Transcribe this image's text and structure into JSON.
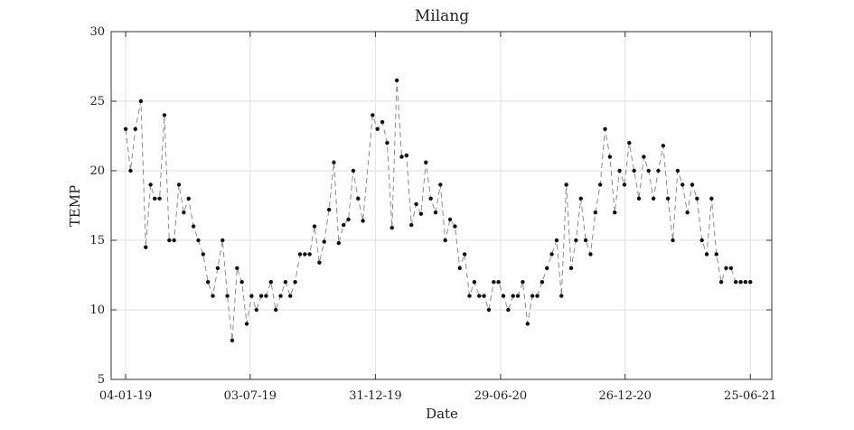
{
  "chart_data": {
    "type": "line",
    "title": "Milang",
    "xlabel": "Date",
    "ylabel": "TEMP",
    "ylim": [
      5,
      30
    ],
    "yticks": [
      5,
      10,
      15,
      20,
      25,
      30
    ],
    "xlim": [
      "2018-12-14",
      "2021-07-26"
    ],
    "xticks": [
      {
        "label": "04-01-19",
        "date": "2019-01-04"
      },
      {
        "label": "03-07-19",
        "date": "2019-07-03"
      },
      {
        "label": "31-12-19",
        "date": "2019-12-31"
      },
      {
        "label": "29-06-20",
        "date": "2020-06-29"
      },
      {
        "label": "26-12-20",
        "date": "2020-12-26"
      },
      {
        "label": "25-06-21",
        "date": "2021-06-25"
      }
    ],
    "grid": true,
    "line_style": "dashed",
    "line_color": "#8c8c8c",
    "marker_color": "#111111",
    "series": [
      {
        "points": [
          [
            "2019-01-04",
            23
          ],
          [
            "2019-01-11",
            20
          ],
          [
            "2019-01-18",
            23
          ],
          [
            "2019-01-26",
            25
          ],
          [
            "2019-02-02",
            14.5
          ],
          [
            "2019-02-09",
            19
          ],
          [
            "2019-02-15",
            18
          ],
          [
            "2019-02-22",
            18
          ],
          [
            "2019-03-01",
            24
          ],
          [
            "2019-03-08",
            15
          ],
          [
            "2019-03-15",
            15
          ],
          [
            "2019-03-22",
            19
          ],
          [
            "2019-03-29",
            17
          ],
          [
            "2019-04-05",
            18
          ],
          [
            "2019-04-12",
            16
          ],
          [
            "2019-04-19",
            15
          ],
          [
            "2019-04-26",
            14
          ],
          [
            "2019-05-03",
            12
          ],
          [
            "2019-05-10",
            11
          ],
          [
            "2019-05-17",
            13
          ],
          [
            "2019-05-24",
            15
          ],
          [
            "2019-05-31",
            11
          ],
          [
            "2019-06-07",
            7.8
          ],
          [
            "2019-06-14",
            13
          ],
          [
            "2019-06-21",
            12
          ],
          [
            "2019-06-28",
            9
          ],
          [
            "2019-07-05",
            11
          ],
          [
            "2019-07-12",
            10
          ],
          [
            "2019-07-19",
            11
          ],
          [
            "2019-07-26",
            11
          ],
          [
            "2019-08-02",
            12
          ],
          [
            "2019-08-09",
            10
          ],
          [
            "2019-08-16",
            11
          ],
          [
            "2019-08-23",
            12
          ],
          [
            "2019-08-30",
            11
          ],
          [
            "2019-09-06",
            12
          ],
          [
            "2019-09-13",
            14
          ],
          [
            "2019-09-20",
            14
          ],
          [
            "2019-09-27",
            14
          ],
          [
            "2019-10-04",
            16
          ],
          [
            "2019-10-11",
            13.4
          ],
          [
            "2019-10-18",
            14.9
          ],
          [
            "2019-10-25",
            17.2
          ],
          [
            "2019-11-01",
            20.6
          ],
          [
            "2019-11-08",
            14.8
          ],
          [
            "2019-11-15",
            16.1
          ],
          [
            "2019-11-22",
            16.5
          ],
          [
            "2019-11-29",
            20
          ],
          [
            "2019-12-06",
            18
          ],
          [
            "2019-12-13",
            16.4
          ],
          [
            "2019-12-27",
            24
          ],
          [
            "2020-01-03",
            23
          ],
          [
            "2020-01-10",
            23.5
          ],
          [
            "2020-01-17",
            22
          ],
          [
            "2020-01-24",
            15.9
          ],
          [
            "2020-01-31",
            26.5
          ],
          [
            "2020-02-07",
            21
          ],
          [
            "2020-02-14",
            21.1
          ],
          [
            "2020-02-21",
            16.1
          ],
          [
            "2020-02-28",
            17.6
          ],
          [
            "2020-03-06",
            16.9
          ],
          [
            "2020-03-13",
            20.6
          ],
          [
            "2020-03-20",
            18
          ],
          [
            "2020-03-27",
            17
          ],
          [
            "2020-04-03",
            19
          ],
          [
            "2020-04-10",
            15
          ],
          [
            "2020-04-17",
            16.5
          ],
          [
            "2020-04-24",
            16
          ],
          [
            "2020-05-01",
            13
          ],
          [
            "2020-05-08",
            14
          ],
          [
            "2020-05-15",
            11
          ],
          [
            "2020-05-22",
            12
          ],
          [
            "2020-05-29",
            11
          ],
          [
            "2020-06-05",
            11
          ],
          [
            "2020-06-12",
            10
          ],
          [
            "2020-06-19",
            12
          ],
          [
            "2020-06-26",
            12
          ],
          [
            "2020-07-03",
            11
          ],
          [
            "2020-07-10",
            10
          ],
          [
            "2020-07-17",
            11
          ],
          [
            "2020-07-24",
            11
          ],
          [
            "2020-07-31",
            12
          ],
          [
            "2020-08-07",
            9
          ],
          [
            "2020-08-14",
            11
          ],
          [
            "2020-08-21",
            11
          ],
          [
            "2020-08-28",
            12
          ],
          [
            "2020-09-04",
            13
          ],
          [
            "2020-09-11",
            14
          ],
          [
            "2020-09-18",
            15
          ],
          [
            "2020-09-25",
            11
          ],
          [
            "2020-10-02",
            19
          ],
          [
            "2020-10-09",
            13
          ],
          [
            "2020-10-16",
            15
          ],
          [
            "2020-10-23",
            18
          ],
          [
            "2020-10-30",
            15
          ],
          [
            "2020-11-06",
            14
          ],
          [
            "2020-11-13",
            17
          ],
          [
            "2020-11-20",
            19
          ],
          [
            "2020-11-27",
            23
          ],
          [
            "2020-12-04",
            21
          ],
          [
            "2020-12-11",
            17
          ],
          [
            "2020-12-18",
            20
          ],
          [
            "2020-12-25",
            19
          ],
          [
            "2021-01-01",
            22
          ],
          [
            "2021-01-08",
            20
          ],
          [
            "2021-01-15",
            18
          ],
          [
            "2021-01-22",
            21
          ],
          [
            "2021-01-29",
            20
          ],
          [
            "2021-02-05",
            18
          ],
          [
            "2021-02-12",
            20
          ],
          [
            "2021-02-19",
            21.8
          ],
          [
            "2021-02-26",
            18
          ],
          [
            "2021-03-05",
            15
          ],
          [
            "2021-03-12",
            20
          ],
          [
            "2021-03-19",
            19
          ],
          [
            "2021-03-26",
            17
          ],
          [
            "2021-04-02",
            19
          ],
          [
            "2021-04-09",
            18
          ],
          [
            "2021-04-16",
            15
          ],
          [
            "2021-04-23",
            14
          ],
          [
            "2021-04-30",
            18
          ],
          [
            "2021-05-07",
            14
          ],
          [
            "2021-05-14",
            12
          ],
          [
            "2021-05-21",
            13
          ],
          [
            "2021-05-28",
            13
          ],
          [
            "2021-06-04",
            12
          ],
          [
            "2021-06-11",
            12
          ],
          [
            "2021-06-18",
            12
          ],
          [
            "2021-06-25",
            12
          ]
        ]
      }
    ]
  }
}
